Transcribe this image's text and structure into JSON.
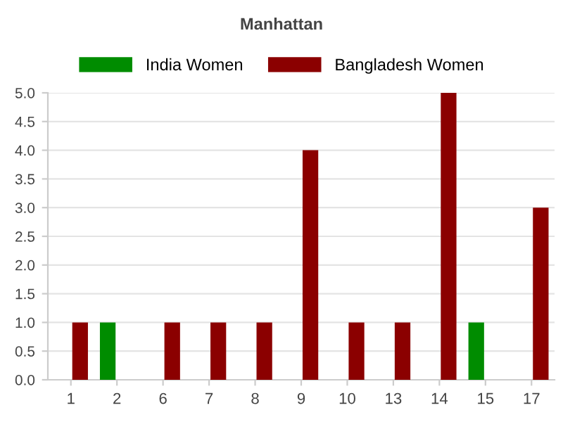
{
  "chart_data": {
    "type": "bar",
    "title": "Manhattan",
    "categories": [
      "1",
      "2",
      "6",
      "7",
      "8",
      "9",
      "10",
      "13",
      "14",
      "15",
      "17"
    ],
    "series": [
      {
        "name": "India Women",
        "color": "#008c00",
        "values": [
          null,
          1,
          null,
          null,
          null,
          null,
          null,
          null,
          null,
          1,
          null
        ]
      },
      {
        "name": "Bangladesh Women",
        "color": "#8b0000",
        "values": [
          1,
          null,
          1,
          1,
          1,
          4,
          1,
          1,
          5,
          null,
          3
        ]
      }
    ],
    "ylim": [
      0,
      5
    ],
    "yticks": [
      {
        "value": 0,
        "label": "0.0"
      },
      {
        "value": 0.5,
        "label": "0.5"
      },
      {
        "value": 1,
        "label": "1.0"
      },
      {
        "value": 1.5,
        "label": "1.5"
      },
      {
        "value": 2,
        "label": "2.0"
      },
      {
        "value": 2.5,
        "label": "2.5"
      },
      {
        "value": 3,
        "label": "3.0"
      },
      {
        "value": 3.5,
        "label": "3.5"
      },
      {
        "value": 4,
        "label": "4.0"
      },
      {
        "value": 4.5,
        "label": "4.5"
      },
      {
        "value": 5,
        "label": "5.0"
      }
    ],
    "grid": "y",
    "legend": "top"
  }
}
